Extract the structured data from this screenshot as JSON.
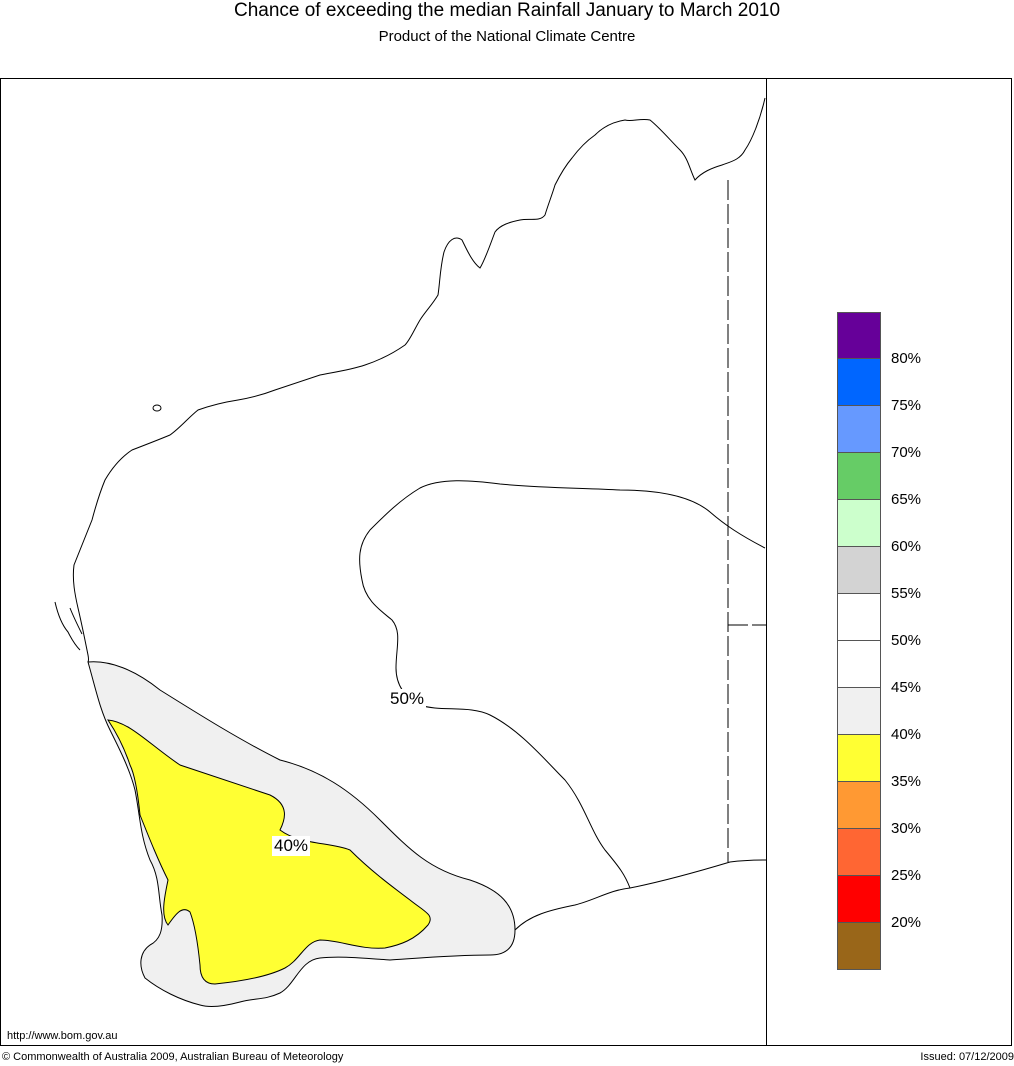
{
  "title": "Chance of exceeding the median Rainfall January to March 2010",
  "subtitle": "Product of the National Climate Centre",
  "contour_labels": {
    "c50": "50%",
    "c40": "40%"
  },
  "region_colors": {
    "35_40": "#ffff33",
    "40_45": "#f0f0f0",
    "ocean": "#ffffff"
  },
  "legend": {
    "colors": [
      "#660099",
      "#0066ff",
      "#6699ff",
      "#66cc66",
      "#ccffcc",
      "#d3d3d3",
      "#ffffff",
      "#ffffff",
      "#f0f0f0",
      "#ffff33",
      "#ff9933",
      "#ff6633",
      "#ff0000",
      "#996619"
    ],
    "ticks": [
      "80%",
      "75%",
      "70%",
      "65%",
      "60%",
      "55%",
      "50%",
      "45%",
      "40%",
      "35%",
      "30%",
      "25%",
      "20%"
    ]
  },
  "footer": {
    "url": "http://www.bom.gov.au",
    "copyright": "© Commonwealth of Australia 2009, Australian Bureau of Meteorology",
    "issued": "Issued: 07/12/2009"
  }
}
